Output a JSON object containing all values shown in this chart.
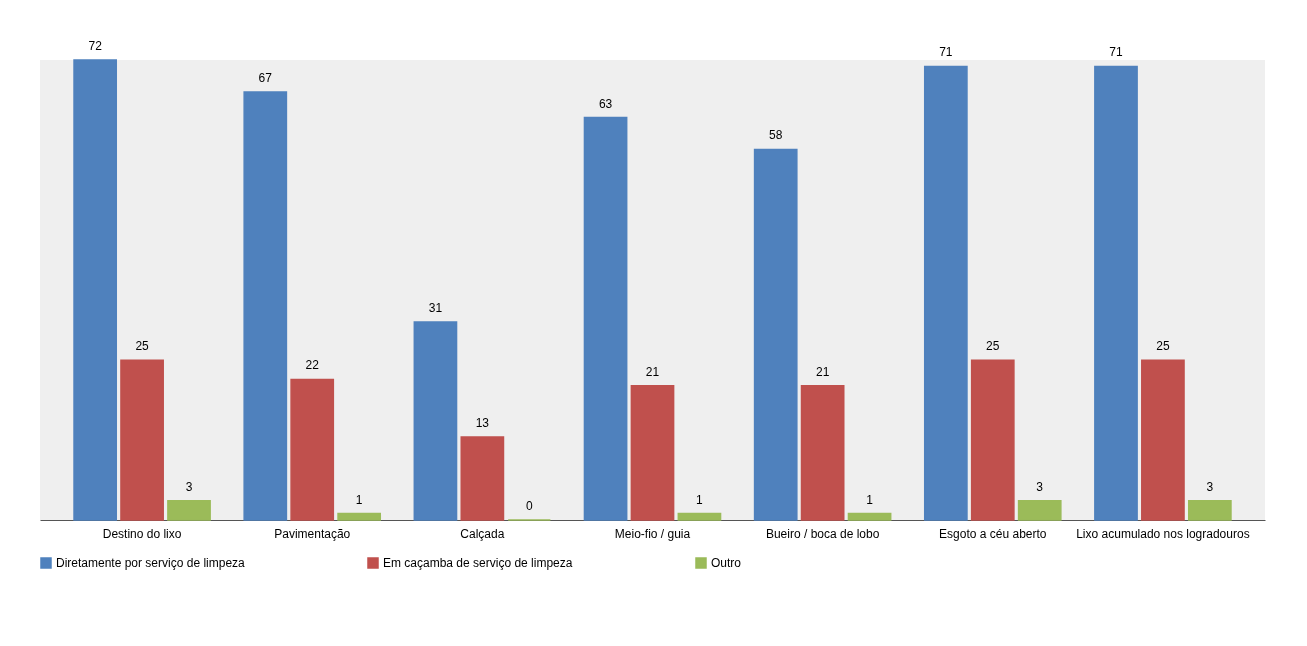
{
  "chart_data": {
    "type": "bar",
    "categories": [
      "Destino do lixo",
      "Pavimentação",
      "Calçada",
      "Meio-fio / guia",
      "Bueiro / boca de lobo",
      "Esgoto a céu aberto",
      "Lixo acumulado nos logradouros"
    ],
    "series": [
      {
        "name": "Diretamente por serviço de limpeza",
        "color": "#4f81bd",
        "values": [
          72,
          67,
          31,
          63,
          58,
          71,
          71
        ]
      },
      {
        "name": "Em caçamba de serviço de limpeza",
        "color": "#c0504d",
        "values": [
          25,
          22,
          13,
          21,
          21,
          25,
          25
        ]
      },
      {
        "name": "Outro",
        "color": "#9bbb59",
        "values": [
          3,
          1,
          0,
          1,
          1,
          3,
          3
        ]
      }
    ],
    "data_labels": true,
    "legend": "bottom"
  }
}
